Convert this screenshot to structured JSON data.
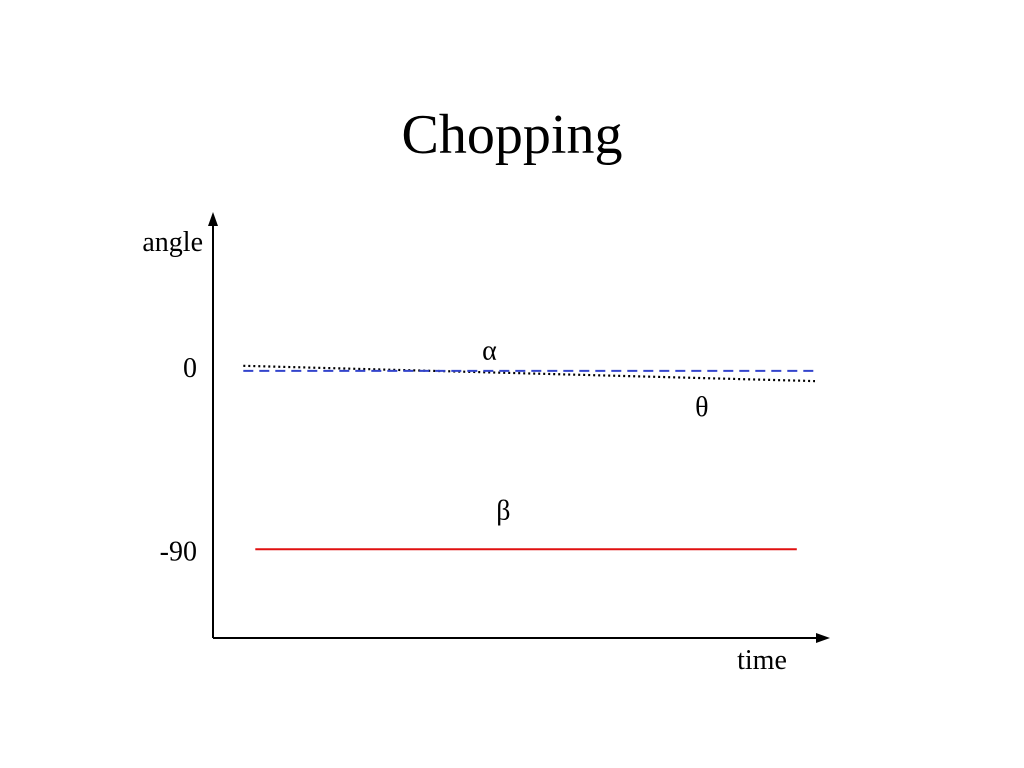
{
  "slide": {
    "title": "Chopping"
  },
  "chart_data": {
    "type": "line",
    "title": "Chopping",
    "xlabel": "time",
    "ylabel": "angle",
    "x_ticks": [],
    "y_ticks": [
      {
        "value": 0,
        "label": "0"
      },
      {
        "value": -90,
        "label": "-90"
      }
    ],
    "ylim": [
      -133,
      73
    ],
    "xlim": [
      0,
      1
    ],
    "grid": false,
    "legend": "none",
    "series": [
      {
        "name": "α",
        "style": "dotted",
        "color": "#000000",
        "x": [
          0.05,
          0.995
        ],
        "y": [
          0.5,
          -7
        ]
      },
      {
        "name": "θ",
        "style": "dashed",
        "color": "#3344cc",
        "x": [
          0.05,
          0.995
        ],
        "y": [
          -2,
          -2
        ]
      },
      {
        "name": "β",
        "style": "solid",
        "color": "#e01010",
        "x": [
          0.07,
          0.965
        ],
        "y": [
          -89.5,
          -89.5
        ]
      }
    ],
    "annotations": [
      {
        "text": "α",
        "x": 0.457,
        "y": 3.5
      },
      {
        "text": "θ",
        "x": 0.808,
        "y": -24
      },
      {
        "text": "β",
        "x": 0.48,
        "y": -75
      }
    ]
  }
}
